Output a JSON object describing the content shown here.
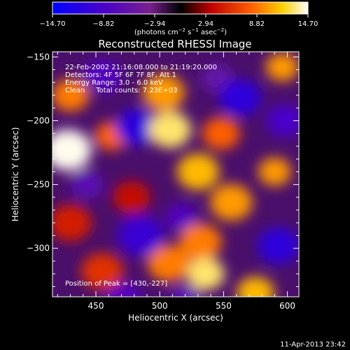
{
  "chart_data": {
    "type": "heatmap",
    "title": "Reconstructed RHESSI Image",
    "xlabel": "Heliocentric X (arcsec)",
    "ylabel": "Heliocentric Y (arcsec)",
    "xlim": [
      416,
      609
    ],
    "ylim": [
      -338,
      -146
    ],
    "x_ticks": [
      450,
      500,
      550,
      600
    ],
    "y_ticks": [
      -150,
      -200,
      -250,
      -300
    ],
    "colorbar": {
      "range": [
        -14.7,
        14.7
      ],
      "tick_labels": [
        "−14.70",
        "−8.82",
        "−2.94",
        "2.94",
        "8.82",
        "14.70"
      ],
      "unit_prefix": "(photons cm",
      "unit_exp1": "−2",
      "unit_mid": " s",
      "unit_exp2": "−1",
      "unit_mid2": " asec",
      "unit_exp3": "−2",
      "unit_suffix": ")"
    },
    "annotations": [
      "22-Feb-2002 21:16:08.000 to 21:19:20.000",
      "Detectors: 4F 5F 6F 7F 8F, Att 1",
      "Energy Range: 3.0 - 6.0 keV",
      "Clean     Total counts: 7.23E+03"
    ],
    "peak_label": "Position of Peak = [430,-227]",
    "sources": [
      {
        "x": 428,
        "y": -223,
        "v": 14.5,
        "r": 10
      },
      {
        "x": 430,
        "y": -180,
        "v": 9,
        "r": 8
      },
      {
        "x": 462,
        "y": -212,
        "v": 8,
        "r": 7
      },
      {
        "x": 503,
        "y": -178,
        "v": 10,
        "r": 9
      },
      {
        "x": 508,
        "y": -207,
        "v": 13,
        "r": 9
      },
      {
        "x": 530,
        "y": -240,
        "v": 11,
        "r": 9
      },
      {
        "x": 548,
        "y": -210,
        "v": 8,
        "r": 8
      },
      {
        "x": 556,
        "y": -264,
        "v": 10,
        "r": 9
      },
      {
        "x": 532,
        "y": -295,
        "v": 9,
        "r": 9
      },
      {
        "x": 590,
        "y": -240,
        "v": 10,
        "r": 7
      },
      {
        "x": 596,
        "y": -158,
        "v": 10,
        "r": 7
      },
      {
        "x": 507,
        "y": -312,
        "v": 9,
        "r": 9
      },
      {
        "x": 536,
        "y": -320,
        "v": 13,
        "r": 8
      },
      {
        "x": 575,
        "y": -335,
        "v": 11,
        "r": 8
      },
      {
        "x": 455,
        "y": -318,
        "v": 6,
        "r": 9
      },
      {
        "x": 478,
        "y": -260,
        "v": 4,
        "r": 8
      },
      {
        "x": 430,
        "y": -280,
        "v": 5,
        "r": 9
      },
      {
        "x": 482,
        "y": -205,
        "v": -11,
        "r": 9
      },
      {
        "x": 455,
        "y": -165,
        "v": -8,
        "r": 8
      },
      {
        "x": 563,
        "y": -182,
        "v": -11,
        "r": 9
      },
      {
        "x": 598,
        "y": -200,
        "v": -9,
        "r": 8
      },
      {
        "x": 443,
        "y": -250,
        "v": -7,
        "r": 7
      },
      {
        "x": 485,
        "y": -290,
        "v": -10,
        "r": 10
      },
      {
        "x": 517,
        "y": -276,
        "v": -8,
        "r": 7
      },
      {
        "x": 545,
        "y": -167,
        "v": -6,
        "r": 7
      },
      {
        "x": 593,
        "y": -298,
        "v": -11,
        "r": 9
      },
      {
        "x": 472,
        "y": -340,
        "v": -8,
        "r": 8
      },
      {
        "x": 520,
        "y": -340,
        "v": -7,
        "r": 7
      }
    ]
  },
  "footer": {
    "timestamp": "11-Apr-2013 23:42"
  }
}
